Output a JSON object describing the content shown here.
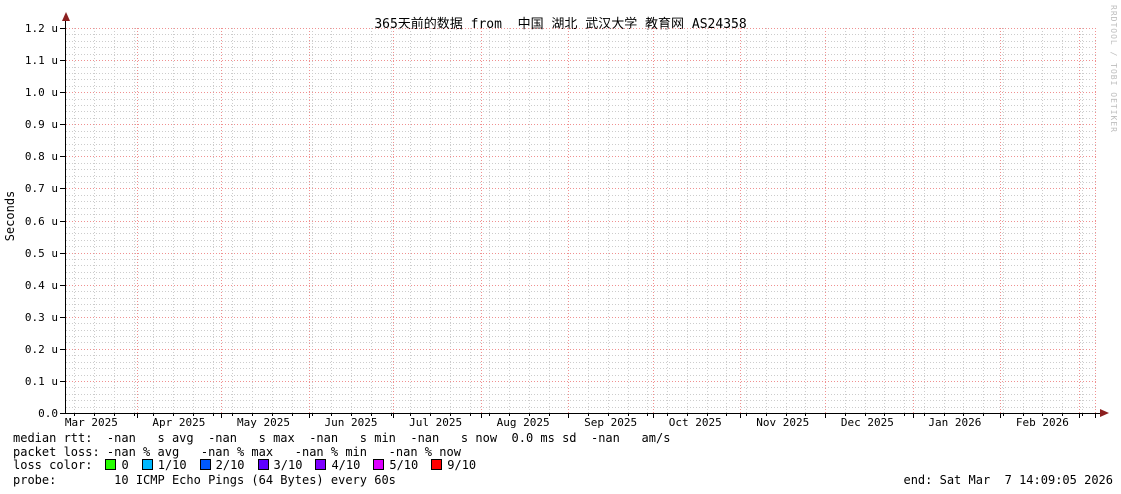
{
  "title": "365天前的数据 from  中国 湖北 武汉大学 教育网 AS24358",
  "watermark": "RRDTOOL / TOBI OETIKER",
  "y_axis": {
    "label": "Seconds",
    "ticks": [
      "0.0",
      "0.1 u",
      "0.2 u",
      "0.3 u",
      "0.4 u",
      "0.5 u",
      "0.6 u",
      "0.7 u",
      "0.8 u",
      "0.9 u",
      "1.0 u",
      "1.1 u",
      "1.2 u"
    ]
  },
  "x_axis": {
    "ticks": [
      "Mar 2025",
      "Apr 2025",
      "May 2025",
      "Jun 2025",
      "Jul 2025",
      "Aug 2025",
      "Sep 2025",
      "Oct 2025",
      "Nov 2025",
      "Dec 2025",
      "Jan 2026",
      "Feb 2026"
    ]
  },
  "chart_data": {
    "type": "line",
    "title": "365天前的数据 from  中国 湖北 武汉大学 教育网 AS24358",
    "xlabel": "",
    "ylabel": "Seconds",
    "x_ticks": [
      "Mar 2025",
      "Apr 2025",
      "May 2025",
      "Jun 2025",
      "Jul 2025",
      "Aug 2025",
      "Sep 2025",
      "Oct 2025",
      "Nov 2025",
      "Dec 2025",
      "Jan 2026",
      "Feb 2026"
    ],
    "y_ticks": [
      "0.0",
      "0.1 u",
      "0.2 u",
      "0.3 u",
      "0.4 u",
      "0.5 u",
      "0.6 u",
      "0.7 u",
      "0.8 u",
      "0.9 u",
      "1.0 u",
      "1.1 u",
      "1.2 u"
    ],
    "ylim": [
      0,
      1.2
    ],
    "y_unit": "microseconds (u)",
    "grid": true,
    "legend_position": "bottom",
    "series": [
      {
        "name": "median rtt",
        "values": [],
        "note": "no data plotted — all statistics are -nan"
      }
    ],
    "stats": {
      "median_rtt": {
        "avg": "-nan s",
        "max": "-nan s",
        "min": "-nan s",
        "now": "-nan s",
        "sd": "0.0 ms",
        "am_s": "-nan"
      },
      "packet_loss": {
        "avg": "-nan %",
        "max": "-nan %",
        "min": "-nan %",
        "now": "-nan %"
      }
    }
  },
  "legend": {
    "median_rtt_line": "median rtt:  -nan   s avg  -nan   s max  -nan   s min  -nan   s now  0.0 ms sd  -nan   am/s",
    "packet_loss_line": "packet loss: -nan % avg   -nan % max   -nan % min   -nan % now",
    "loss_color_label": "loss color:",
    "loss_colors": [
      {
        "label": "0",
        "color": "#26ff00"
      },
      {
        "label": "1/10",
        "color": "#00b8ff"
      },
      {
        "label": "2/10",
        "color": "#0059ff"
      },
      {
        "label": "3/10",
        "color": "#5e00ff"
      },
      {
        "label": "4/10",
        "color": "#7e00ff"
      },
      {
        "label": "5/10",
        "color": "#dd00ff"
      },
      {
        "label": "9/10",
        "color": "#ff0000"
      }
    ],
    "probe_line": "probe:        10 ICMP Echo Pings (64 Bytes) every 60s",
    "end_line": "end: Sat Mar  7 14:09:05 2026"
  },
  "colors": {
    "background": "#ffffff",
    "major_grid": "#f09090",
    "minor_grid": "#cccccc",
    "axis": "#000000",
    "arrow": "#8b1f1f",
    "watermark": "#bdbdbd"
  }
}
